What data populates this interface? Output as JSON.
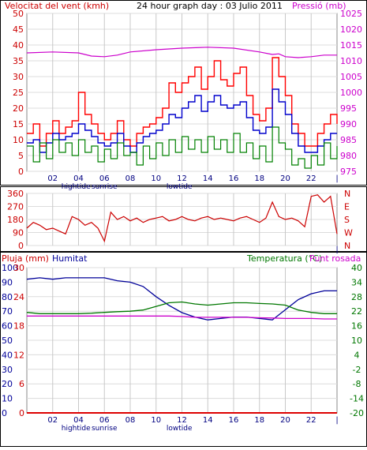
{
  "chart_data": [
    {
      "type": "line",
      "title": "24 hour graph day : 03 Julio 2011",
      "ylabel_left": "Velocitat del vent (kmh)",
      "ylabel_right": "Pressió (mb)",
      "hour_ticks": [
        "02",
        "04",
        "06",
        "08",
        "10",
        "12",
        "14",
        "16",
        "18",
        "20",
        "22"
      ],
      "event_labels": [
        {
          "hour": 3.8,
          "label": "hightide"
        },
        {
          "hour": 6.0,
          "label": "sunrise"
        },
        {
          "hour": 11.8,
          "label": "lowtide"
        }
      ],
      "ylim_left": [
        0,
        50
      ],
      "yticks_left": [
        0,
        5,
        10,
        15,
        20,
        25,
        30,
        35,
        40,
        45,
        50
      ],
      "ylim_right": [
        975,
        1025
      ],
      "yticks_right": [
        975,
        980,
        985,
        990,
        995,
        1000,
        1005,
        1010,
        1015,
        1020,
        1025
      ],
      "xlim": [
        0,
        24
      ],
      "grid": true,
      "colors": {
        "gust": "#ff0000",
        "avg": "#0000cc",
        "wind": "#008000",
        "pressure": "#cc00cc"
      },
      "series": [
        {
          "key": "gust",
          "axis": "left",
          "step": true,
          "x": [
            0,
            0.5,
            1,
            1.5,
            2,
            2.5,
            3,
            3.5,
            4,
            4.5,
            5,
            5.5,
            6,
            6.5,
            7,
            7.5,
            8,
            8.5,
            9,
            9.5,
            10,
            10.5,
            11,
            11.5,
            12,
            12.5,
            13,
            13.5,
            14,
            14.5,
            15,
            15.5,
            16,
            16.5,
            17,
            17.5,
            18,
            18.5,
            19,
            19.5,
            20,
            20.5,
            21,
            21.5,
            22,
            22.5,
            23,
            23.5,
            24
          ],
          "y": [
            12,
            15,
            8,
            12,
            16,
            12,
            14,
            16,
            25,
            18,
            15,
            12,
            10,
            12,
            16,
            10,
            8,
            12,
            14,
            15,
            17,
            20,
            28,
            25,
            28,
            30,
            33,
            26,
            30,
            35,
            29,
            27,
            31,
            33,
            24,
            18,
            16,
            20,
            36,
            30,
            24,
            15,
            12,
            8,
            8,
            12,
            15,
            18,
            15
          ]
        },
        {
          "key": "avg",
          "axis": "left",
          "step": true,
          "x": [
            0,
            0.5,
            1,
            1.5,
            2,
            2.5,
            3,
            3.5,
            4,
            4.5,
            5,
            5.5,
            6,
            6.5,
            7,
            7.5,
            8,
            8.5,
            9,
            9.5,
            10,
            10.5,
            11,
            11.5,
            12,
            12.5,
            13,
            13.5,
            14,
            14.5,
            15,
            15.5,
            16,
            16.5,
            17,
            17.5,
            18,
            18.5,
            19,
            19.5,
            20,
            20.5,
            21,
            21.5,
            22,
            22.5,
            23,
            23.5,
            24
          ],
          "y": [
            9,
            10,
            6,
            9,
            12,
            10,
            11,
            12,
            15,
            13,
            11,
            9,
            8,
            9,
            12,
            8,
            6,
            9,
            11,
            12,
            13,
            15,
            18,
            17,
            20,
            22,
            24,
            19,
            22,
            24,
            21,
            20,
            21,
            22,
            17,
            13,
            12,
            14,
            26,
            22,
            18,
            12,
            8,
            6,
            6,
            8,
            10,
            12,
            12
          ]
        },
        {
          "key": "wind",
          "axis": "left",
          "step": true,
          "x": [
            0,
            0.5,
            1,
            1.5,
            2,
            2.5,
            3,
            3.5,
            4,
            4.5,
            5,
            5.5,
            6,
            6.5,
            7,
            7.5,
            8,
            8.5,
            9,
            9.5,
            10,
            10.5,
            11,
            11.5,
            12,
            12.5,
            13,
            13.5,
            14,
            14.5,
            15,
            15.5,
            16,
            16.5,
            17,
            17.5,
            18,
            18.5,
            19,
            19.5,
            20,
            20.5,
            21,
            21.5,
            22,
            22.5,
            23,
            23.5,
            24
          ],
          "y": [
            8,
            3,
            9,
            4,
            10,
            6,
            9,
            5,
            10,
            6,
            8,
            3,
            7,
            4,
            9,
            5,
            6,
            2,
            8,
            4,
            9,
            5,
            10,
            6,
            11,
            7,
            10,
            6,
            11,
            7,
            10,
            6,
            12,
            6,
            9,
            4,
            8,
            3,
            14,
            9,
            7,
            2,
            4,
            1,
            5,
            2,
            9,
            4,
            8
          ]
        },
        {
          "key": "pressure",
          "axis": "right",
          "step": false,
          "x": [
            0,
            2,
            4,
            5,
            6,
            7,
            8,
            10,
            12,
            14,
            16,
            18,
            19,
            19.5,
            20,
            21,
            22,
            23,
            24
          ],
          "y": [
            1012.5,
            1012.8,
            1012.5,
            1011.5,
            1011.3,
            1011.8,
            1012.8,
            1013.5,
            1014.0,
            1014.3,
            1014.0,
            1012.8,
            1012.0,
            1012.2,
            1011.3,
            1011.0,
            1011.3,
            1011.8,
            1011.8
          ]
        }
      ]
    },
    {
      "type": "line",
      "title": "",
      "ylim": [
        0,
        360
      ],
      "yticks": [
        0,
        90,
        180,
        270,
        360
      ],
      "compass_labels": [
        "N",
        "W",
        "S",
        "E",
        "N"
      ],
      "xlim": [
        0,
        24
      ],
      "colors": {
        "direction": "#cc0000"
      },
      "series": [
        {
          "key": "direction",
          "step": false,
          "x": [
            0,
            0.5,
            1,
            1.5,
            2,
            2.5,
            3,
            3.5,
            4,
            4.5,
            5,
            5.5,
            6,
            6.5,
            7,
            7.5,
            8,
            8.5,
            9,
            9.5,
            10,
            10.5,
            11,
            11.5,
            12,
            12.5,
            13,
            13.5,
            14,
            14.5,
            15,
            15.5,
            16,
            16.5,
            17,
            17.5,
            18,
            18.5,
            19,
            19.5,
            20,
            20.5,
            21,
            21.5,
            22,
            22.5,
            23,
            23.5,
            24
          ],
          "y": [
            120,
            160,
            140,
            110,
            120,
            100,
            80,
            200,
            180,
            140,
            160,
            120,
            30,
            230,
            180,
            200,
            170,
            190,
            160,
            180,
            190,
            200,
            170,
            180,
            200,
            180,
            170,
            190,
            200,
            180,
            190,
            180,
            170,
            190,
            200,
            180,
            160,
            190,
            300,
            200,
            180,
            190,
            170,
            130,
            340,
            350,
            300,
            340,
            80
          ]
        }
      ]
    },
    {
      "type": "line",
      "ylabel_left_1": "Pluja (mm)",
      "ylabel_left_2": "Humitat",
      "ylabel_right": "Temperatura (°C)",
      "ylabel_right_2": "Punt rosada",
      "ylim_rain": [
        0,
        100
      ],
      "yticks_rain": [
        0,
        10,
        20,
        30,
        40,
        50,
        60,
        70,
        80,
        90,
        100
      ],
      "ylim_humidity": [
        0,
        30
      ],
      "yticks_humidity": [
        0,
        6,
        12,
        18,
        24,
        30
      ],
      "ylim_temp": [
        -20,
        40
      ],
      "yticks_temp": [
        -20,
        -14,
        -8,
        -2,
        4,
        10,
        16,
        22,
        28,
        34,
        40
      ],
      "xlim": [
        0,
        24
      ],
      "colors": {
        "rain": "#dd0000",
        "humidity": "#000099",
        "temperature": "#007700",
        "dewpoint": "#cc00cc"
      },
      "series": [
        {
          "key": "rain",
          "axis": "rain",
          "x": [
            0,
            24
          ],
          "y": [
            0,
            0
          ]
        },
        {
          "key": "humidity",
          "axis": "rain",
          "x": [
            0,
            1,
            2,
            3,
            4,
            5,
            6,
            7,
            8,
            9,
            10,
            11,
            12,
            13,
            14,
            15,
            16,
            17,
            18,
            19,
            20,
            21,
            22,
            23,
            24
          ],
          "y": [
            92,
            93,
            92,
            93,
            93,
            93,
            93,
            91,
            90,
            87,
            80,
            74,
            69,
            66,
            64,
            65,
            66,
            66,
            65,
            64,
            71,
            78,
            82,
            84,
            84
          ]
        },
        {
          "key": "temperature",
          "axis": "temp",
          "x": [
            0,
            1,
            2,
            3,
            4,
            5,
            6,
            7,
            8,
            9,
            10,
            11,
            12,
            13,
            14,
            15,
            16,
            17,
            18,
            19,
            20,
            21,
            22,
            23,
            24
          ],
          "y": [
            21.5,
            21,
            21,
            21,
            21,
            21.2,
            21.5,
            21.8,
            22,
            22.5,
            24,
            25.5,
            25.8,
            25,
            24.5,
            25,
            25.5,
            25.5,
            25.2,
            25,
            24.5,
            22.5,
            21.5,
            21,
            21
          ]
        },
        {
          "key": "dewpoint",
          "axis": "temp",
          "x": [
            0,
            1,
            2,
            3,
            4,
            5,
            6,
            7,
            8,
            9,
            10,
            11,
            12,
            13,
            14,
            15,
            16,
            17,
            18,
            19,
            20,
            21,
            22,
            23,
            24
          ],
          "y": [
            20,
            20,
            20,
            20,
            20,
            20,
            20,
            20,
            20,
            20,
            20,
            20,
            19.8,
            19.5,
            19.5,
            19.5,
            19.5,
            19.5,
            19.3,
            19.2,
            19,
            19,
            19,
            18.8,
            18.8
          ]
        }
      ],
      "hour_ticks": [
        "02",
        "04",
        "06",
        "08",
        "10",
        "12",
        "14",
        "16",
        "18",
        "20",
        "22"
      ],
      "event_labels": [
        {
          "hour": 3.8,
          "label": "hightide"
        },
        {
          "hour": 6.0,
          "label": "sunrise"
        },
        {
          "hour": 11.8,
          "label": "lowtide"
        }
      ]
    }
  ]
}
